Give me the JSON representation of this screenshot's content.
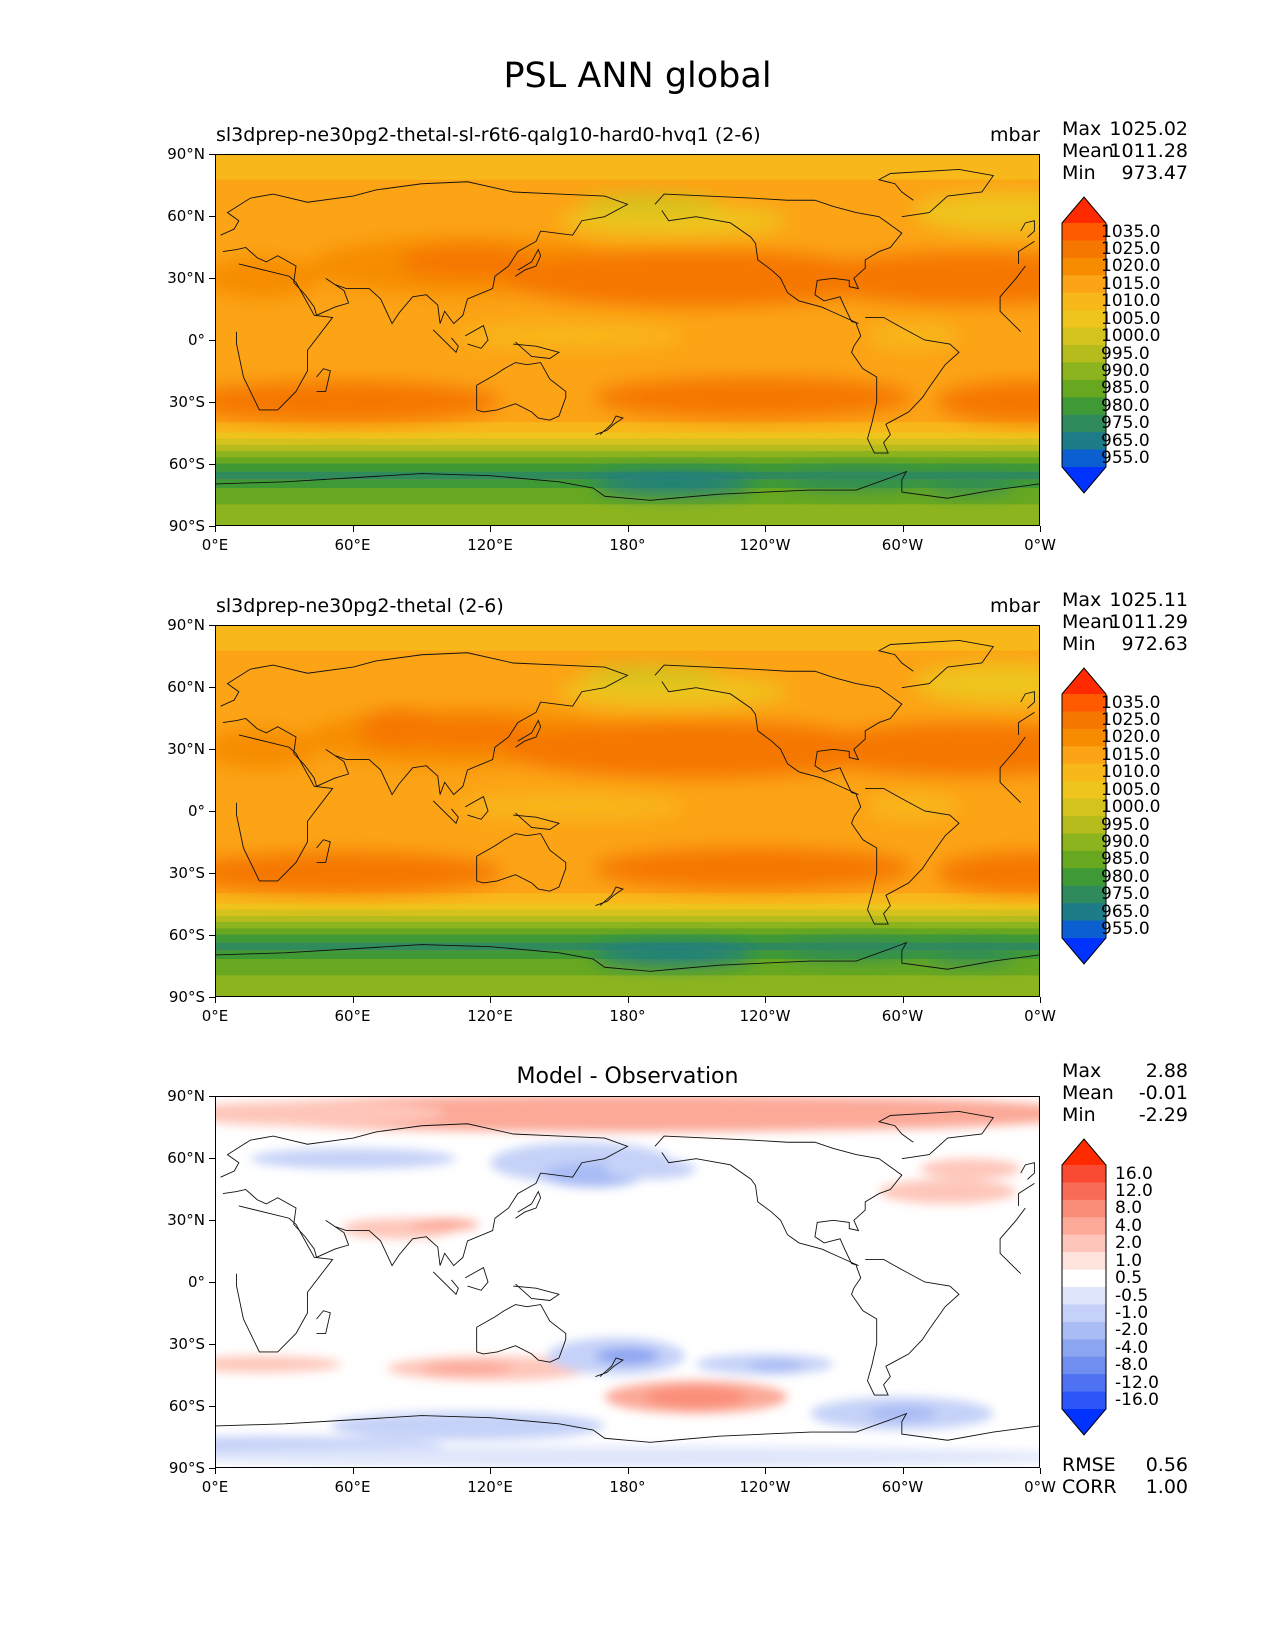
{
  "title": "PSL ANN global",
  "axes": {
    "lat_labels": [
      "90°N",
      "60°N",
      "30°N",
      "0°",
      "30°S",
      "60°S",
      "90°S"
    ],
    "lon_labels": [
      "0°E",
      "60°E",
      "120°E",
      "180°",
      "120°W",
      "60°W",
      "0°W"
    ]
  },
  "panels": [
    {
      "title": "sl3dprep-ne30pg2-thetal-sl-r6t6-qalg10-hard0-hvq1 (2-6)",
      "units": "mbar",
      "stats": [
        {
          "label": "Max",
          "value": "1025.02"
        },
        {
          "label": "Mean",
          "value": "1011.28"
        },
        {
          "label": "Min",
          "value": "973.47"
        }
      ],
      "colorbar": {
        "levels": [
          "1035.0",
          "1025.0",
          "1020.0",
          "1015.0",
          "1010.0",
          "1005.0",
          "1000.0",
          "995.0",
          "990.0",
          "985.0",
          "980.0",
          "975.0",
          "965.0",
          "955.0"
        ],
        "colors": [
          "#ff2a00",
          "#ff5a00",
          "#f57700",
          "#f78c00",
          "#fca316",
          "#f8b81a",
          "#efc41c",
          "#d4c21e",
          "#b6bc1c",
          "#8cb41e",
          "#68a820",
          "#3f9a36",
          "#2f8a5c",
          "#1e7b88",
          "#0b5fd0",
          "#0033ff"
        ]
      }
    },
    {
      "title": "sl3dprep-ne30pg2-thetal (2-6)",
      "units": "mbar",
      "stats": [
        {
          "label": "Max",
          "value": "1025.11"
        },
        {
          "label": "Mean",
          "value": "1011.29"
        },
        {
          "label": "Min",
          "value": "972.63"
        }
      ],
      "colorbar": {
        "levels": [
          "1035.0",
          "1025.0",
          "1020.0",
          "1015.0",
          "1010.0",
          "1005.0",
          "1000.0",
          "995.0",
          "990.0",
          "985.0",
          "980.0",
          "975.0",
          "965.0",
          "955.0"
        ],
        "colors": [
          "#ff2a00",
          "#ff5a00",
          "#f57700",
          "#f78c00",
          "#fca316",
          "#f8b81a",
          "#efc41c",
          "#d4c21e",
          "#b6bc1c",
          "#8cb41e",
          "#68a820",
          "#3f9a36",
          "#2f8a5c",
          "#1e7b88",
          "#0b5fd0",
          "#0033ff"
        ]
      }
    },
    {
      "title": "Model - Observation",
      "units": "",
      "stats": [
        {
          "label": "Max",
          "value": "2.88"
        },
        {
          "label": "Mean",
          "value": "-0.01"
        },
        {
          "label": "Min",
          "value": "-2.29"
        }
      ],
      "extra_stats": [
        {
          "label": "RMSE",
          "value": "0.56"
        },
        {
          "label": "CORR",
          "value": "1.00"
        }
      ],
      "colorbar": {
        "levels": [
          "16.0",
          "12.0",
          "8.0",
          "4.0",
          "2.0",
          "1.0",
          "0.5",
          "-0.5",
          "-1.0",
          "-2.0",
          "-4.0",
          "-8.0",
          "-12.0",
          "-16.0"
        ],
        "colors": [
          "#ff2a00",
          "#fa4a33",
          "#f86b55",
          "#fa8d78",
          "#fca998",
          "#fec6ba",
          "#ffe4dd",
          "#ffffff",
          "#dfe6fb",
          "#c5d1f8",
          "#a9bcf4",
          "#8ca5f1",
          "#6f8ef0",
          "#4f72f2",
          "#2d55f7",
          "#0033ff"
        ]
      }
    }
  ]
}
